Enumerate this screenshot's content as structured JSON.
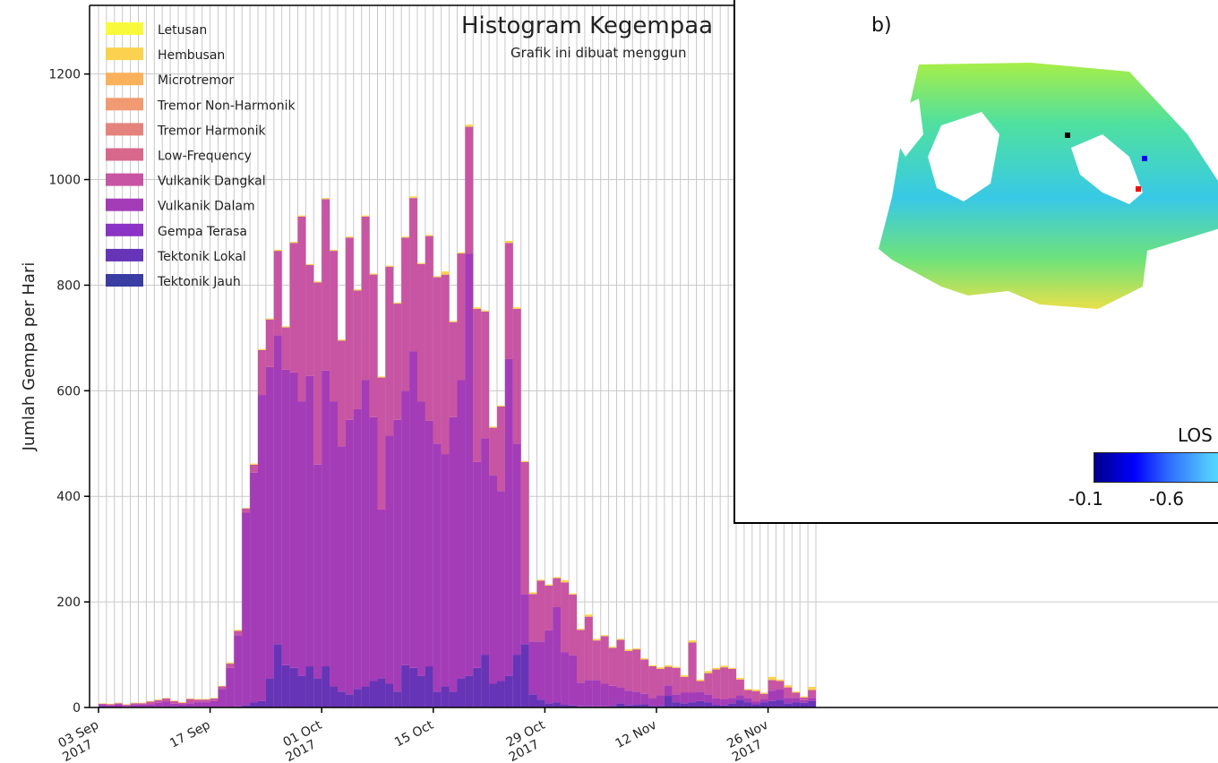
{
  "chart_data": {
    "type": "bar",
    "title": "Histogram Kegempaa",
    "subtitle": "Grafik ini dibuat menggun",
    "xlabel": "",
    "ylabel": "Jumlah Gempa per Hari",
    "ylim": [
      0,
      1330
    ],
    "yticks": [
      0,
      200,
      400,
      600,
      800,
      1000,
      1200
    ],
    "ytick_labels": [
      "0",
      "200",
      "400",
      "600",
      "800",
      "1000",
      "1200"
    ],
    "xtick_labels": [
      {
        "day": 0,
        "line1": "03 Sep",
        "line2": "2017"
      },
      {
        "day": 14,
        "line1": "17 Sep",
        "line2": ""
      },
      {
        "day": 28,
        "line1": "01 Oct",
        "line2": "2017"
      },
      {
        "day": 42,
        "line1": "15 Oct",
        "line2": ""
      },
      {
        "day": 56,
        "line1": "29 Oct",
        "line2": "2017"
      },
      {
        "day": 70,
        "line1": "12 Nov",
        "line2": ""
      },
      {
        "day": 84,
        "line1": "26 Nov",
        "line2": "2017"
      }
    ],
    "grid": true,
    "legend_position": "upper-left",
    "legend": [
      {
        "name": "Letusan",
        "color": "#f9f93c"
      },
      {
        "name": "Hembusan",
        "color": "#fbd24f"
      },
      {
        "name": "Microtremor",
        "color": "#f9b15b"
      },
      {
        "name": "Tremor Non-Harmonik",
        "color": "#f29a71"
      },
      {
        "name": "Tremor Harmonik",
        "color": "#e4837c"
      },
      {
        "name": "Low-Frequency",
        "color": "#d8678c"
      },
      {
        "name": "Vulkanik Dangkal",
        "color": "#c855a3"
      },
      {
        "name": "Vulkanik Dalam",
        "color": "#a43cb8"
      },
      {
        "name": "Gempa Terasa",
        "color": "#8a33c4"
      },
      {
        "name": "Tektonik Lokal",
        "color": "#6634b6"
      },
      {
        "name": "Tektonik Jauh",
        "color": "#3a3da2"
      }
    ],
    "series": [
      {
        "name": "Tektonik Lokal",
        "color": "#6634b6",
        "values": [
          3,
          0,
          0,
          1,
          1,
          0,
          0,
          1,
          1,
          2,
          0,
          0,
          0,
          0,
          0,
          0,
          0,
          2,
          4,
          10,
          12,
          55,
          120,
          80,
          75,
          60,
          78,
          55,
          78,
          40,
          30,
          25,
          35,
          40,
          50,
          55,
          45,
          30,
          80,
          75,
          60,
          78,
          30,
          40,
          30,
          55,
          60,
          75,
          100,
          45,
          50,
          60,
          100,
          120,
          25,
          15,
          8,
          10,
          5,
          4,
          2,
          2,
          2,
          2,
          3,
          8,
          4,
          5,
          6,
          3,
          3,
          22,
          10,
          8,
          10,
          12,
          10,
          5,
          4,
          8,
          15,
          10,
          6,
          10,
          12,
          15,
          8,
          10,
          9,
          12
        ]
      },
      {
        "name": "Vulkanik Dalam",
        "color": "#a43cb8",
        "values": [
          2,
          4,
          6,
          2,
          4,
          5,
          6,
          8,
          10,
          5,
          6,
          8,
          10,
          10,
          12,
          35,
          75,
          135,
          365,
          435,
          580,
          590,
          585,
          560,
          560,
          520,
          550,
          405,
          560,
          540,
          465,
          520,
          530,
          580,
          500,
          320,
          470,
          515,
          520,
          600,
          520,
          465,
          470,
          440,
          520,
          565,
          800,
          390,
          410,
          395,
          360,
          600,
          400,
          95,
          100,
          110,
          138,
          180,
          100,
          95,
          45,
          50,
          50,
          43,
          38,
          30,
          28,
          25,
          20,
          15,
          20,
          20,
          15,
          20,
          18,
          18,
          15,
          12,
          12,
          10,
          8,
          8,
          5,
          6,
          20,
          20,
          10,
          8,
          5,
          6
        ]
      },
      {
        "name": "Vulkanik Dangkal",
        "color": "#c855a3",
        "values": [
          2,
          2,
          2,
          2,
          3,
          3,
          5,
          5,
          6,
          5,
          3,
          8,
          5,
          5,
          5,
          5,
          8,
          8,
          8,
          15,
          85,
          90,
          160,
          80,
          245,
          350,
          210,
          345,
          325,
          285,
          200,
          345,
          225,
          310,
          270,
          250,
          320,
          220,
          290,
          290,
          260,
          350,
          315,
          340,
          180,
          240,
          240,
          290,
          240,
          90,
          160,
          220,
          255,
          250,
          90,
          115,
          85,
          55,
          132,
          115,
          100,
          120,
          75,
          90,
          72,
          90,
          75,
          80,
          65,
          60,
          50,
          35,
          50,
          30,
          95,
          20,
          40,
          55,
          60,
          55,
          30,
          15,
          20,
          10,
          20,
          15,
          20,
          10,
          5,
          15
        ]
      },
      {
        "name": "Hembusan",
        "color": "#fbd24f",
        "values": [
          1,
          1,
          1,
          1,
          1,
          1,
          1,
          1,
          1,
          1,
          1,
          1,
          1,
          1,
          1,
          1,
          2,
          2,
          1,
          2,
          2,
          2,
          2,
          2,
          2,
          2,
          2,
          2,
          2,
          2,
          2,
          2,
          2,
          2,
          2,
          2,
          2,
          2,
          2,
          3,
          2,
          2,
          2,
          6,
          2,
          2,
          4,
          3,
          2,
          2,
          2,
          4,
          3,
          2,
          3,
          2,
          2,
          2,
          4,
          2,
          2,
          4,
          3,
          2,
          2,
          2,
          3,
          2,
          2,
          2,
          3,
          3,
          2,
          3,
          4,
          3,
          4,
          3,
          3,
          2,
          3,
          2,
          3,
          2,
          6,
          3,
          4,
          2,
          2,
          6
        ]
      }
    ]
  },
  "inset": {
    "label": "b)",
    "colorbar_title": "LOS",
    "colorbar_ticks": [
      "-0.1",
      "-0.6"
    ]
  },
  "colors": {
    "grid": "#c8c8c8",
    "background": "#ffffff"
  }
}
